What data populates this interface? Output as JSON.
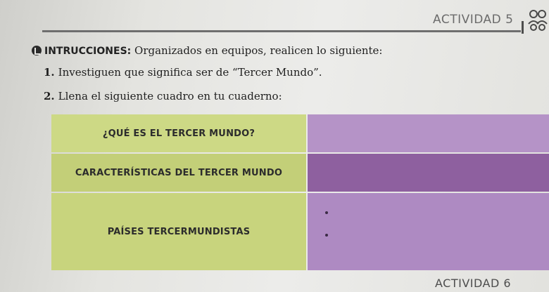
{
  "header": {
    "activity_title": "ACTIVIDAD 5"
  },
  "instructions": {
    "label": "INTRUCCIONES:",
    "text": " Organizados en equipos, realicen lo siguiente:"
  },
  "steps": [
    {
      "number": "1.",
      "text": "Investiguen que significa ser de “Tercer Mundo”."
    },
    {
      "number": "2.",
      "text": "Llena el siguiente cuadro en tu cuaderno:"
    }
  ],
  "table": {
    "rows": [
      {
        "label": "¿QUÉ ES EL TERCER MUNDO?"
      },
      {
        "label": "CARACTERÍSTICAS DEL TERCER MUNDO"
      },
      {
        "label": "PAÍSES TERCERMUNDISTAS"
      }
    ]
  },
  "footer": {
    "next_activity": "ACTIVIDAD 6"
  },
  "colors": {
    "green_cell": "#c9d57e",
    "purple_light": "#b593c7",
    "purple_dark": "#8e609f"
  },
  "icons": [
    "check-circle-icon",
    "group-people-icon"
  ]
}
